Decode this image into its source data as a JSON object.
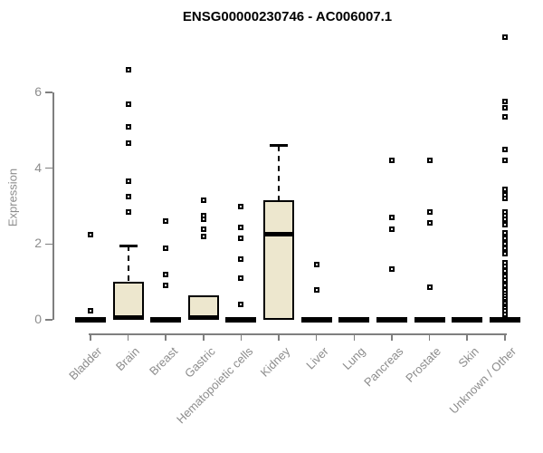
{
  "chart_data": {
    "type": "boxplot",
    "title": "ENSG00000230746 - AC006007.1",
    "ylabel": "Expression",
    "xlabel": "",
    "yticks": [
      0,
      2,
      4,
      6
    ],
    "ylim": [
      0,
      7.6
    ],
    "grid": false,
    "legend": "none",
    "categories": [
      "Bladder",
      "Brain",
      "Breast",
      "Gastric",
      "Hematopoietic cells",
      "Kidney",
      "Liver",
      "Lung",
      "Pancreas",
      "Prostate",
      "Skin",
      "Unknown / Other"
    ],
    "boxes": [
      {
        "category": "Bladder",
        "q1": 0,
        "median": 0,
        "q3": 0,
        "whisker_low": 0,
        "whisker_high": 0,
        "outliers": [
          2.25,
          0.25
        ]
      },
      {
        "category": "Brain",
        "q1": 0,
        "median": 0.05,
        "q3": 1.0,
        "whisker_low": 0,
        "whisker_high": 1.95,
        "outliers": [
          6.6,
          5.7,
          5.1,
          4.65,
          3.65,
          3.25,
          2.85
        ]
      },
      {
        "category": "Breast",
        "q1": 0,
        "median": 0,
        "q3": 0,
        "whisker_low": 0,
        "whisker_high": 0,
        "outliers": [
          2.6,
          1.9,
          1.2,
          0.9
        ]
      },
      {
        "category": "Gastric",
        "q1": 0,
        "median": 0.05,
        "q3": 0.65,
        "whisker_low": 0,
        "whisker_high": 0.65,
        "outliers": [
          3.15,
          2.75,
          2.65,
          2.4,
          2.2
        ]
      },
      {
        "category": "Hematopoietic cells",
        "q1": 0,
        "median": 0,
        "q3": 0,
        "whisker_low": 0,
        "whisker_high": 0,
        "outliers": [
          3.0,
          2.45,
          2.15,
          1.6,
          1.1,
          0.4
        ]
      },
      {
        "category": "Kidney",
        "q1": 0,
        "median": 2.25,
        "q3": 3.15,
        "whisker_low": 0,
        "whisker_high": 4.6,
        "outliers": []
      },
      {
        "category": "Liver",
        "q1": 0,
        "median": 0,
        "q3": 0,
        "whisker_low": 0,
        "whisker_high": 0,
        "outliers": [
          1.45,
          0.8
        ]
      },
      {
        "category": "Lung",
        "q1": 0,
        "median": 0,
        "q3": 0,
        "whisker_low": 0,
        "whisker_high": 0,
        "outliers": []
      },
      {
        "category": "Pancreas",
        "q1": 0,
        "median": 0,
        "q3": 0,
        "whisker_low": 0,
        "whisker_high": 0,
        "outliers": [
          4.2,
          2.7,
          2.4,
          1.35
        ]
      },
      {
        "category": "Prostate",
        "q1": 0,
        "median": 0,
        "q3": 0,
        "whisker_low": 0,
        "whisker_high": 0,
        "outliers": [
          4.2,
          2.85,
          2.55,
          0.85
        ]
      },
      {
        "category": "Skin",
        "q1": 0,
        "median": 0,
        "q3": 0,
        "whisker_low": 0,
        "whisker_high": 0,
        "outliers": []
      },
      {
        "category": "Unknown / Other",
        "q1": 0,
        "median": 0,
        "q3": 0,
        "whisker_low": 0,
        "whisker_high": 0,
        "outliers": [
          7.45,
          5.75,
          5.6,
          5.35,
          4.5,
          4.2,
          3.45,
          3.3,
          3.2,
          2.85,
          2.75,
          2.65,
          2.5,
          2.3,
          2.15,
          2.0,
          1.9,
          1.75,
          1.5,
          1.4,
          1.3,
          1.15,
          1.05,
          0.9,
          0.8,
          0.7,
          0.62,
          0.55,
          0.48,
          0.42,
          0.36,
          0.3,
          0.25,
          0.15
        ]
      }
    ],
    "colors": {
      "box_fill": "#EDE7CE",
      "box_border": "#000000",
      "median": "#000000",
      "outlier": "#000000",
      "axis": "#7f7f7f",
      "tick_text": "#8c8c8c",
      "title_text": "#000000"
    }
  }
}
